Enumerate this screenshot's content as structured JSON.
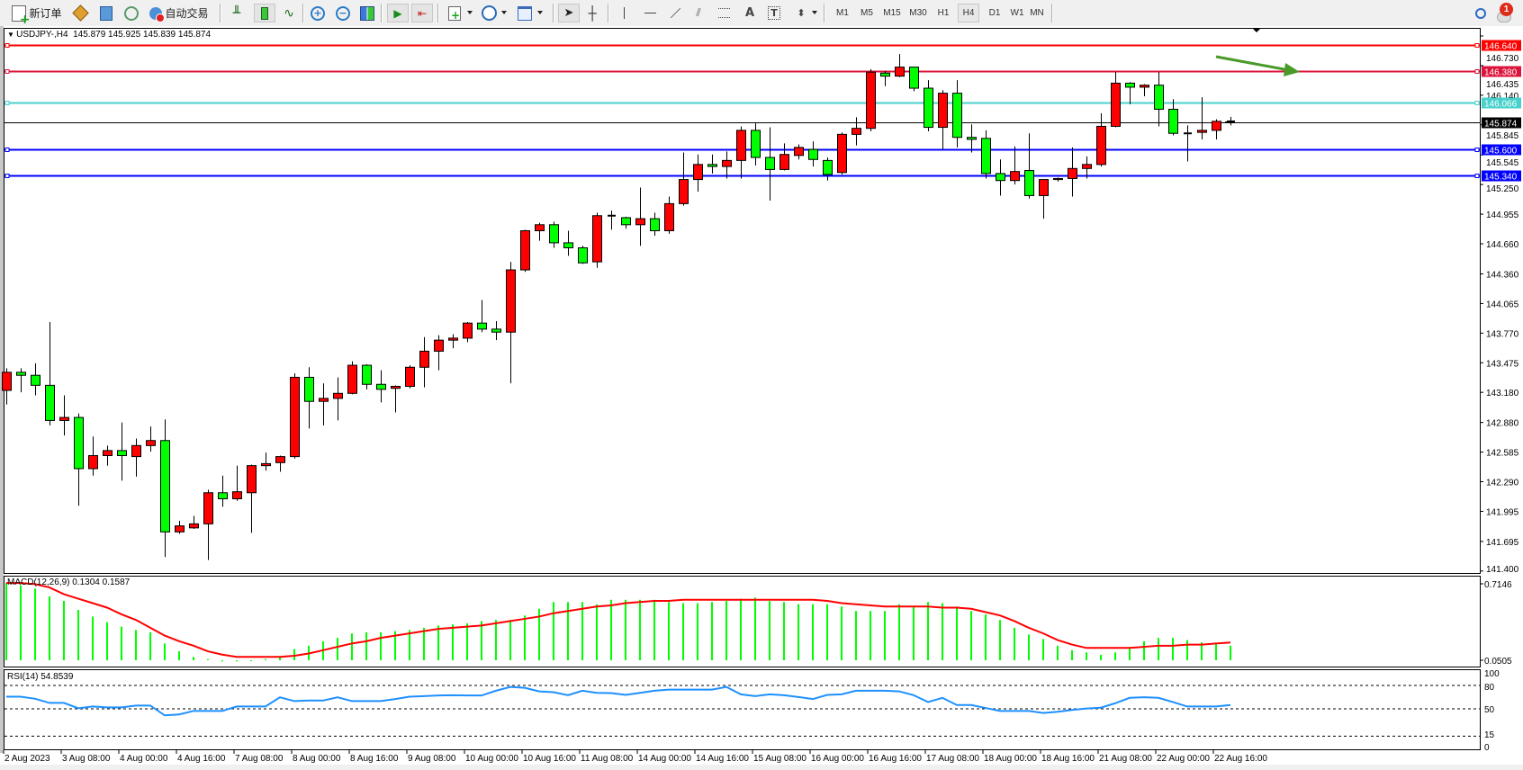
{
  "toolbar": {
    "new_order_label": "新订单",
    "autotrading_label": "自动交易",
    "icons": [
      "new-order",
      "market-watch",
      "data-window",
      "navigator",
      "autotrading",
      "bar-chart",
      "candlestick-chart",
      "line-chart",
      "zoom-in",
      "zoom-out",
      "tile-windows",
      "auto-scroll",
      "chart-shift",
      "indicators",
      "periods",
      "templates",
      "cursor",
      "crosshair",
      "vertical-line",
      "horizontal-line",
      "trendline",
      "equidistant-channel",
      "fibonacci-retracement",
      "text",
      "text-label",
      "arrows",
      "search",
      "notifications"
    ],
    "timeframes": [
      "M1",
      "M5",
      "M15",
      "M30",
      "H1",
      "H4",
      "D1",
      "W1",
      "MN"
    ],
    "active_timeframe": "H4",
    "notification_count": "1"
  },
  "chart": {
    "header": "USDJPY-,H4  145.879 145.925 145.839 145.874",
    "macd_label": "MACD(12,26,9) 0.1304 0.1587",
    "rsi_label": "RSI(14) 54.8539"
  },
  "colors": {
    "bull": "#ff0000",
    "bear": "#00ff00",
    "macd_hist": "#00ff00",
    "macd_signal": "#ff0000",
    "rsi_line": "#1e90ff",
    "annotation_arrow": "#4a9a2a"
  },
  "chart_data": {
    "type": "candlestick",
    "symbol": "USDJPY-",
    "timeframe": "H4",
    "ylim": [
      141.4,
      146.73
    ],
    "y_ticks": [
      "146.730",
      "146.435",
      "146.140",
      "145.845",
      "145.545",
      "145.250",
      "144.955",
      "144.660",
      "144.360",
      "144.065",
      "143.770",
      "143.475",
      "143.180",
      "142.880",
      "142.585",
      "142.290",
      "141.995",
      "141.695",
      "141.400"
    ],
    "x_tick_labels": [
      "2 Aug 2023",
      "3 Aug 08:00",
      "4 Aug 00:00",
      "4 Aug 16:00",
      "7 Aug 08:00",
      "8 Aug 00:00",
      "8 Aug 16:00",
      "9 Aug 08:00",
      "10 Aug 00:00",
      "10 Aug 16:00",
      "11 Aug 08:00",
      "14 Aug 00:00",
      "14 Aug 16:00",
      "15 Aug 08:00",
      "16 Aug 00:00",
      "16 Aug 16:00",
      "17 Aug 08:00",
      "18 Aug 00:00",
      "18 Aug 16:00",
      "21 Aug 08:00",
      "22 Aug 00:00",
      "22 Aug 16:00"
    ],
    "x_tick_every_bars": 4,
    "ohlc": [
      [
        143.2,
        143.42,
        143.06,
        143.38
      ],
      [
        143.38,
        143.42,
        143.18,
        143.35
      ],
      [
        143.35,
        143.47,
        143.15,
        143.25
      ],
      [
        143.25,
        143.88,
        142.85,
        142.9
      ],
      [
        142.9,
        143.15,
        142.75,
        142.93
      ],
      [
        142.93,
        142.97,
        142.05,
        142.42
      ],
      [
        142.42,
        142.74,
        142.35,
        142.55
      ],
      [
        142.55,
        142.65,
        142.45,
        142.6
      ],
      [
        142.6,
        142.88,
        142.3,
        142.55
      ],
      [
        142.54,
        142.72,
        142.34,
        142.65
      ],
      [
        142.65,
        142.84,
        142.59,
        142.7
      ],
      [
        142.7,
        142.91,
        141.54,
        141.79
      ],
      [
        141.79,
        141.9,
        141.77,
        141.85
      ],
      [
        141.83,
        141.95,
        141.82,
        141.87
      ],
      [
        141.87,
        142.21,
        141.51,
        142.18
      ],
      [
        142.18,
        142.35,
        142.04,
        142.12
      ],
      [
        142.12,
        142.45,
        142.1,
        142.19
      ],
      [
        142.18,
        142.46,
        141.78,
        142.45
      ],
      [
        142.45,
        142.58,
        142.4,
        142.47
      ],
      [
        142.48,
        142.55,
        142.39,
        142.54
      ],
      [
        142.54,
        143.37,
        142.52,
        143.33
      ],
      [
        143.33,
        143.43,
        142.82,
        143.09
      ],
      [
        143.09,
        143.27,
        142.85,
        143.12
      ],
      [
        143.12,
        143.33,
        142.9,
        143.17
      ],
      [
        143.17,
        143.49,
        143.16,
        143.45
      ],
      [
        143.45,
        143.46,
        143.21,
        143.26
      ],
      [
        143.26,
        143.4,
        143.08,
        143.21
      ],
      [
        143.22,
        143.25,
        142.98,
        143.24
      ],
      [
        143.24,
        143.45,
        143.22,
        143.43
      ],
      [
        143.43,
        143.73,
        143.23,
        143.59
      ],
      [
        143.59,
        143.75,
        143.4,
        143.7
      ],
      [
        143.7,
        143.76,
        143.62,
        143.72
      ],
      [
        143.72,
        143.88,
        143.68,
        143.87
      ],
      [
        143.87,
        144.1,
        143.78,
        143.81
      ],
      [
        143.81,
        143.89,
        143.7,
        143.78
      ],
      [
        143.78,
        144.48,
        143.27,
        144.4
      ],
      [
        144.4,
        144.8,
        144.38,
        144.79
      ],
      [
        144.79,
        144.87,
        144.69,
        144.85
      ],
      [
        144.85,
        144.88,
        144.62,
        144.67
      ],
      [
        144.67,
        144.79,
        144.54,
        144.62
      ],
      [
        144.62,
        144.64,
        144.46,
        144.47
      ],
      [
        144.48,
        144.97,
        144.42,
        144.94
      ],
      [
        144.94,
        144.99,
        144.8,
        144.94
      ],
      [
        144.92,
        144.93,
        144.81,
        144.85
      ],
      [
        144.85,
        145.22,
        144.64,
        144.91
      ],
      [
        144.91,
        144.97,
        144.74,
        144.79
      ],
      [
        144.79,
        145.13,
        144.76,
        145.06
      ],
      [
        145.06,
        145.57,
        145.04,
        145.3
      ],
      [
        145.3,
        145.55,
        145.18,
        145.45
      ],
      [
        145.45,
        145.55,
        145.36,
        145.43
      ],
      [
        145.43,
        145.58,
        145.31,
        145.49
      ],
      [
        145.49,
        145.83,
        145.31,
        145.79
      ],
      [
        145.79,
        145.86,
        145.44,
        145.52
      ],
      [
        145.52,
        145.82,
        145.09,
        145.4
      ],
      [
        145.4,
        145.66,
        145.39,
        145.55
      ],
      [
        145.54,
        145.65,
        145.5,
        145.62
      ],
      [
        145.6,
        145.68,
        145.43,
        145.5
      ],
      [
        145.49,
        145.52,
        145.29,
        145.35
      ],
      [
        145.37,
        145.77,
        145.35,
        145.75
      ],
      [
        145.75,
        145.92,
        145.64,
        145.81
      ],
      [
        145.81,
        146.4,
        145.78,
        146.37
      ],
      [
        146.36,
        146.38,
        146.23,
        146.33
      ],
      [
        146.33,
        146.55,
        146.32,
        146.42
      ],
      [
        146.42,
        146.42,
        146.18,
        146.21
      ],
      [
        146.21,
        146.29,
        145.78,
        145.82
      ],
      [
        145.82,
        146.19,
        145.6,
        146.16
      ],
      [
        146.16,
        146.29,
        145.62,
        145.72
      ],
      [
        145.72,
        145.85,
        145.57,
        145.7
      ],
      [
        145.71,
        145.79,
        145.31,
        145.36
      ],
      [
        145.36,
        145.5,
        145.14,
        145.29
      ],
      [
        145.29,
        145.63,
        145.25,
        145.38
      ],
      [
        145.39,
        145.76,
        145.11,
        145.14
      ],
      [
        145.14,
        145.3,
        144.91,
        145.3
      ],
      [
        145.3,
        145.32,
        145.28,
        145.31
      ],
      [
        145.31,
        145.62,
        145.13,
        145.41
      ],
      [
        145.41,
        145.53,
        145.31,
        145.45
      ],
      [
        145.45,
        145.96,
        145.43,
        145.83
      ],
      [
        145.83,
        146.37,
        145.82,
        146.26
      ],
      [
        146.26,
        146.27,
        146.05,
        146.22
      ],
      [
        146.22,
        146.25,
        146.13,
        146.24
      ],
      [
        146.24,
        146.37,
        145.83,
        146.0
      ],
      [
        146.0,
        146.1,
        145.74,
        145.76
      ],
      [
        145.76,
        145.84,
        145.48,
        145.76
      ],
      [
        145.77,
        146.12,
        145.7,
        145.79
      ],
      [
        145.79,
        145.9,
        145.7,
        145.88
      ],
      [
        145.879,
        145.925,
        145.839,
        145.874
      ]
    ],
    "hlines": [
      {
        "price": "146.640",
        "color": "#ff0000"
      },
      {
        "price": "146.380",
        "color": "#dc143c"
      },
      {
        "price": "146.066",
        "color": "#48d1cc"
      },
      {
        "price": "145.874",
        "color": "#000000",
        "bid": true
      },
      {
        "price": "145.600",
        "color": "#0000ff"
      },
      {
        "price": "145.340",
        "color": "#0000ff"
      }
    ],
    "macd": {
      "axis_labels": [
        "0.7146",
        "0.0505"
      ],
      "ylim": [
        0,
        0.7146
      ],
      "hist": [
        0.69,
        0.67,
        0.64,
        0.57,
        0.53,
        0.45,
        0.39,
        0.34,
        0.3,
        0.27,
        0.25,
        0.15,
        0.08,
        0.03,
        0.01,
        -0.01,
        -0.01,
        -0.005,
        0.01,
        0.03,
        0.1,
        0.13,
        0.17,
        0.2,
        0.24,
        0.25,
        0.25,
        0.26,
        0.27,
        0.29,
        0.31,
        0.32,
        0.33,
        0.35,
        0.36,
        0.36,
        0.4,
        0.46,
        0.52,
        0.52,
        0.52,
        0.5,
        0.54,
        0.54,
        0.54,
        0.54,
        0.52,
        0.51,
        0.51,
        0.52,
        0.53,
        0.55,
        0.56,
        0.53,
        0.52,
        0.5,
        0.5,
        0.5,
        0.48,
        0.44,
        0.44,
        0.44,
        0.5,
        0.48,
        0.52,
        0.51,
        0.48,
        0.44,
        0.41,
        0.36,
        0.29,
        0.23,
        0.19,
        0.13,
        0.09,
        0.07,
        0.05,
        0.07,
        0.12,
        0.17,
        0.2,
        0.2,
        0.18,
        0.16,
        0.15,
        0.1304
      ],
      "signal": [
        0.69,
        0.69,
        0.68,
        0.65,
        0.59,
        0.55,
        0.51,
        0.47,
        0.41,
        0.36,
        0.29,
        0.22,
        0.17,
        0.13,
        0.08,
        0.05,
        0.03,
        0.03,
        0.03,
        0.03,
        0.04,
        0.06,
        0.09,
        0.12,
        0.15,
        0.17,
        0.2,
        0.22,
        0.24,
        0.26,
        0.28,
        0.29,
        0.3,
        0.31,
        0.33,
        0.35,
        0.37,
        0.39,
        0.42,
        0.44,
        0.46,
        0.48,
        0.49,
        0.51,
        0.52,
        0.53,
        0.53,
        0.54,
        0.54,
        0.54,
        0.54,
        0.54,
        0.54,
        0.54,
        0.54,
        0.54,
        0.54,
        0.53,
        0.51,
        0.5,
        0.49,
        0.48,
        0.48,
        0.48,
        0.48,
        0.47,
        0.47,
        0.46,
        0.43,
        0.4,
        0.35,
        0.29,
        0.24,
        0.18,
        0.14,
        0.11,
        0.11,
        0.11,
        0.11,
        0.12,
        0.13,
        0.13,
        0.14,
        0.14,
        0.15,
        0.1587
      ]
    },
    "rsi": {
      "axis_labels": [
        "100",
        "80",
        "50",
        "15",
        "0"
      ],
      "levels": [
        80,
        50,
        15
      ],
      "values": [
        65.6,
        65.6,
        62.9,
        57.6,
        57.6,
        50.8,
        53.0,
        51.9,
        51.9,
        54.2,
        54.2,
        41.6,
        42.8,
        47.3,
        47.3,
        47.3,
        53.0,
        53.0,
        53.0,
        64.8,
        59.9,
        60.6,
        60.6,
        64.8,
        59.9,
        59.9,
        59.9,
        62.5,
        65.6,
        66.3,
        67.1,
        67.5,
        67.1,
        67.1,
        73.2,
        78.1,
        76.9,
        72.4,
        71.3,
        67.5,
        73.2,
        70.5,
        70.2,
        67.9,
        70.5,
        73.2,
        74.7,
        74.7,
        74.7,
        74.7,
        78.1,
        68.6,
        66.3,
        68.6,
        67.5,
        65.2,
        62.5,
        67.9,
        68.6,
        73.2,
        73.2,
        73.2,
        72.4,
        67.5,
        58.7,
        64.1,
        54.9,
        54.9,
        51.1,
        47.3,
        47.3,
        47.3,
        44.7,
        46.2,
        48.5,
        50.4,
        51.5,
        57.2,
        64.1,
        64.8,
        64.1,
        58.7,
        53.0,
        53.0,
        53.0,
        54.85
      ]
    }
  }
}
